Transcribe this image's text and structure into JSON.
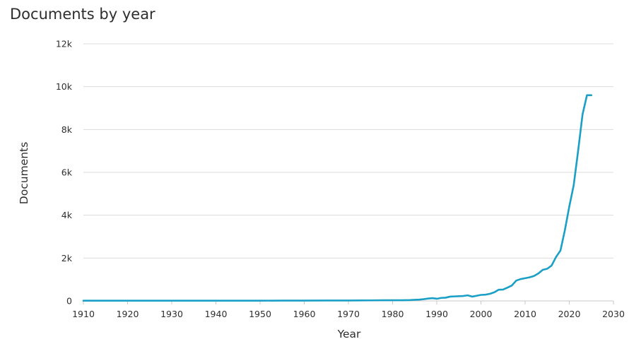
{
  "page": {
    "title": "Documents by year"
  },
  "chart_data": {
    "type": "line",
    "title": "Documents by year",
    "xlabel": "Year",
    "ylabel": "Documents",
    "xlim": [
      1910,
      2030
    ],
    "ylim": [
      0,
      12000
    ],
    "x_ticks": [
      1910,
      1920,
      1930,
      1940,
      1950,
      1960,
      1970,
      1980,
      1990,
      2000,
      2010,
      2020,
      2030
    ],
    "x_tick_labels": [
      "1910",
      "1920",
      "1930",
      "1940",
      "1950",
      "1960",
      "1970",
      "1980",
      "1990",
      "2000",
      "2010",
      "2020",
      "2030"
    ],
    "y_ticks": [
      0,
      2000,
      4000,
      6000,
      8000,
      10000,
      12000
    ],
    "y_tick_labels": [
      "0",
      "2k",
      "4k",
      "6k",
      "8k",
      "10k",
      "12k"
    ],
    "grid": "horizontal",
    "line_color": "#1a9fc6",
    "series": [
      {
        "x": [
          1910,
          1920,
          1930,
          1940,
          1950,
          1955,
          1960,
          1965,
          1970,
          1975,
          1978,
          1980,
          1982,
          1984,
          1985,
          1986,
          1987,
          1988,
          1989,
          1990,
          1991,
          1992,
          1993,
          1994,
          1995,
          1996,
          1997,
          1998,
          1999,
          2000,
          2001,
          2002,
          2003,
          2004,
          2005,
          2006,
          2007,
          2008,
          2009,
          2010,
          2011,
          2012,
          2013,
          2014,
          2015,
          2016,
          2017,
          2018,
          2019,
          2020,
          2021,
          2022,
          2023,
          2024,
          2025
        ],
        "values": [
          10,
          10,
          10,
          10,
          10,
          15,
          15,
          20,
          20,
          25,
          30,
          30,
          30,
          40,
          50,
          60,
          80,
          110,
          130,
          100,
          140,
          150,
          200,
          210,
          220,
          230,
          260,
          200,
          240,
          280,
          290,
          330,
          400,
          520,
          530,
          620,
          720,
          950,
          1020,
          1060,
          1100,
          1160,
          1280,
          1450,
          1500,
          1650,
          2050,
          2350,
          3300,
          4400,
          5400,
          7000,
          8700,
          9600,
          9600
        ]
      }
    ]
  }
}
